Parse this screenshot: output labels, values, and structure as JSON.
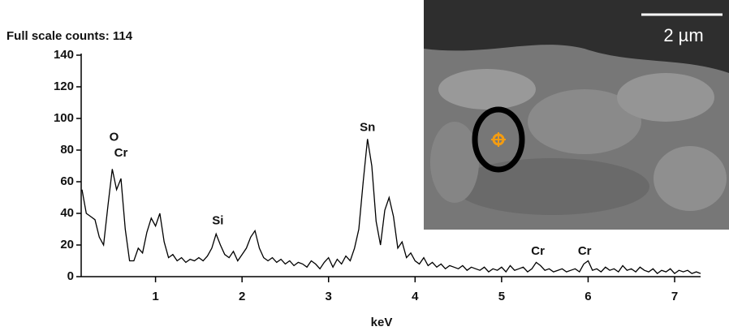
{
  "chart_data": {
    "type": "line",
    "title": "Full scale counts: 114",
    "x_label": "keV",
    "x": [
      0.15,
      0.2,
      0.25,
      0.3,
      0.35,
      0.4,
      0.45,
      0.5,
      0.55,
      0.6,
      0.65,
      0.7,
      0.75,
      0.8,
      0.85,
      0.9,
      0.95,
      1.0,
      1.05,
      1.1,
      1.15,
      1.2,
      1.25,
      1.3,
      1.35,
      1.4,
      1.45,
      1.5,
      1.55,
      1.6,
      1.65,
      1.7,
      1.75,
      1.8,
      1.85,
      1.9,
      1.95,
      2.0,
      2.05,
      2.1,
      2.15,
      2.2,
      2.25,
      2.3,
      2.35,
      2.4,
      2.45,
      2.5,
      2.55,
      2.6,
      2.65,
      2.7,
      2.75,
      2.8,
      2.85,
      2.9,
      2.95,
      3.0,
      3.05,
      3.1,
      3.15,
      3.2,
      3.25,
      3.3,
      3.35,
      3.4,
      3.45,
      3.5,
      3.55,
      3.6,
      3.65,
      3.7,
      3.75,
      3.8,
      3.85,
      3.9,
      3.95,
      4.0,
      4.05,
      4.1,
      4.15,
      4.2,
      4.25,
      4.3,
      4.35,
      4.4,
      4.45,
      4.5,
      4.55,
      4.6,
      4.65,
      4.7,
      4.75,
      4.8,
      4.85,
      4.9,
      4.95,
      5.0,
      5.05,
      5.1,
      5.15,
      5.2,
      5.25,
      5.3,
      5.35,
      5.4,
      5.45,
      5.5,
      5.55,
      5.6,
      5.65,
      5.7,
      5.75,
      5.8,
      5.85,
      5.9,
      5.95,
      6.0,
      6.05,
      6.1,
      6.15,
      6.2,
      6.25,
      6.3,
      6.35,
      6.4,
      6.45,
      6.5,
      6.55,
      6.6,
      6.65,
      6.7,
      6.75,
      6.8,
      6.85,
      6.9,
      6.95,
      7.0,
      7.05,
      7.1,
      7.15,
      7.2,
      7.25,
      7.3
    ],
    "values": [
      55,
      40,
      38,
      36,
      25,
      20,
      45,
      68,
      55,
      62,
      30,
      10,
      10,
      18,
      15,
      28,
      37,
      32,
      40,
      22,
      12,
      14,
      10,
      12,
      9,
      11,
      10,
      12,
      10,
      13,
      18,
      27,
      20,
      14,
      12,
      16,
      10,
      14,
      18,
      25,
      29,
      18,
      12,
      10,
      12,
      9,
      11,
      8,
      10,
      7,
      9,
      8,
      6,
      10,
      8,
      5,
      9,
      12,
      6,
      11,
      8,
      13,
      10,
      18,
      30,
      60,
      87,
      70,
      35,
      20,
      42,
      50,
      38,
      18,
      22,
      12,
      15,
      10,
      8,
      12,
      7,
      9,
      6,
      8,
      5,
      7,
      6,
      5,
      7,
      4,
      6,
      5,
      4,
      6,
      3,
      5,
      4,
      6,
      3,
      7,
      4,
      5,
      6,
      3,
      5,
      9,
      7,
      4,
      5,
      3,
      4,
      5,
      3,
      4,
      5,
      3,
      8,
      10,
      4,
      5,
      3,
      6,
      4,
      5,
      3,
      7,
      4,
      5,
      3,
      6,
      4,
      3,
      5,
      2,
      4,
      3,
      5,
      2,
      4,
      3,
      4,
      2,
      3,
      2
    ],
    "color": "#000000",
    "xlim": [
      0.15,
      7.3
    ],
    "xticks": [
      1,
      2,
      3,
      4,
      5,
      6,
      7
    ],
    "ylim": [
      0,
      140
    ],
    "yticks": [
      0,
      20,
      40,
      60,
      80,
      100,
      120,
      140
    ],
    "annotations": [
      {
        "text": "O",
        "x": 0.52,
        "y": 88
      },
      {
        "text": "Cr",
        "x": 0.6,
        "y": 78
      },
      {
        "text": "Si",
        "x": 1.72,
        "y": 35
      },
      {
        "text": "Sn",
        "x": 3.45,
        "y": 94
      },
      {
        "text": "Cr",
        "x": 5.42,
        "y": 16
      },
      {
        "text": "Cr",
        "x": 5.96,
        "y": 16
      }
    ]
  },
  "inset": {
    "scale_bar": "2 µm"
  }
}
